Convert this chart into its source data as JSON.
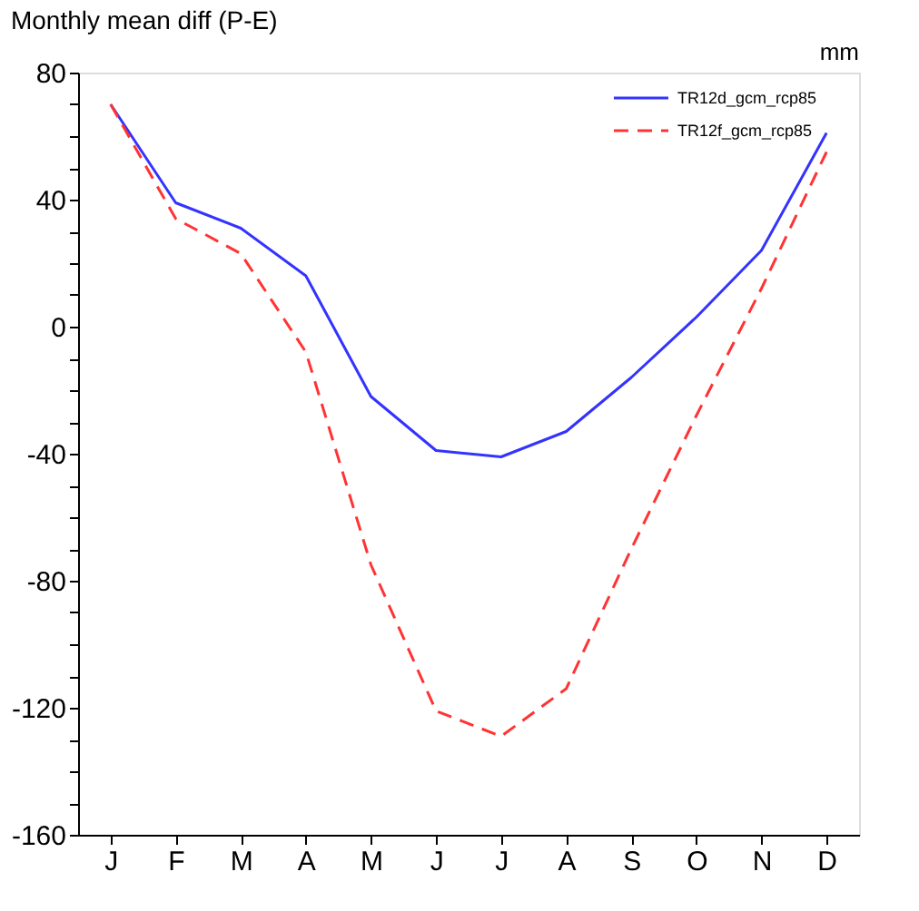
{
  "chart_data": {
    "type": "line",
    "title": "Monthly mean diff (P-E)",
    "annotations": [
      "mm"
    ],
    "categories": [
      "J",
      "F",
      "M",
      "A",
      "M",
      "J",
      "J",
      "A",
      "S",
      "O",
      "N",
      "D"
    ],
    "ylim": [
      -160,
      80
    ],
    "yticks": [
      -160,
      {
        "value": -150,
        "label": null
      },
      {
        "value": -140,
        "label": null
      },
      {
        "value": -130,
        "label": null
      },
      -120,
      {
        "value": -110,
        "label": null
      },
      {
        "value": -100,
        "label": null
      },
      {
        "value": -90,
        "label": null
      },
      -80,
      {
        "value": -70,
        "label": null
      },
      {
        "value": -60,
        "label": null
      },
      {
        "value": -50,
        "label": null
      },
      -40,
      {
        "value": -30,
        "label": null
      },
      {
        "value": -20,
        "label": null
      },
      {
        "value": -10,
        "label": null
      },
      0,
      {
        "value": 10,
        "label": null
      },
      {
        "value": 20,
        "label": null
      },
      {
        "value": 30,
        "label": null
      },
      40,
      {
        "value": 50,
        "label": null
      },
      {
        "value": 60,
        "label": null
      },
      {
        "value": 70,
        "label": null
      },
      80
    ],
    "grid": false,
    "legend": "top right",
    "marker": "none",
    "series": [
      {
        "name": "TR12d_gcm_rcp85",
        "color": "#3333ff",
        "line_style": "solid",
        "values": [
          70,
          39,
          31,
          16,
          -22,
          -39,
          -41,
          -33,
          -16,
          3,
          24,
          61
        ]
      },
      {
        "name": "TR12f_gcm_rcp85",
        "color": "#ff3333",
        "line_style": "dashed",
        "values": [
          70,
          34,
          23,
          -8,
          -75,
          -121,
          -129,
          -114,
          -70,
          -28,
          12,
          55
        ]
      }
    ]
  }
}
